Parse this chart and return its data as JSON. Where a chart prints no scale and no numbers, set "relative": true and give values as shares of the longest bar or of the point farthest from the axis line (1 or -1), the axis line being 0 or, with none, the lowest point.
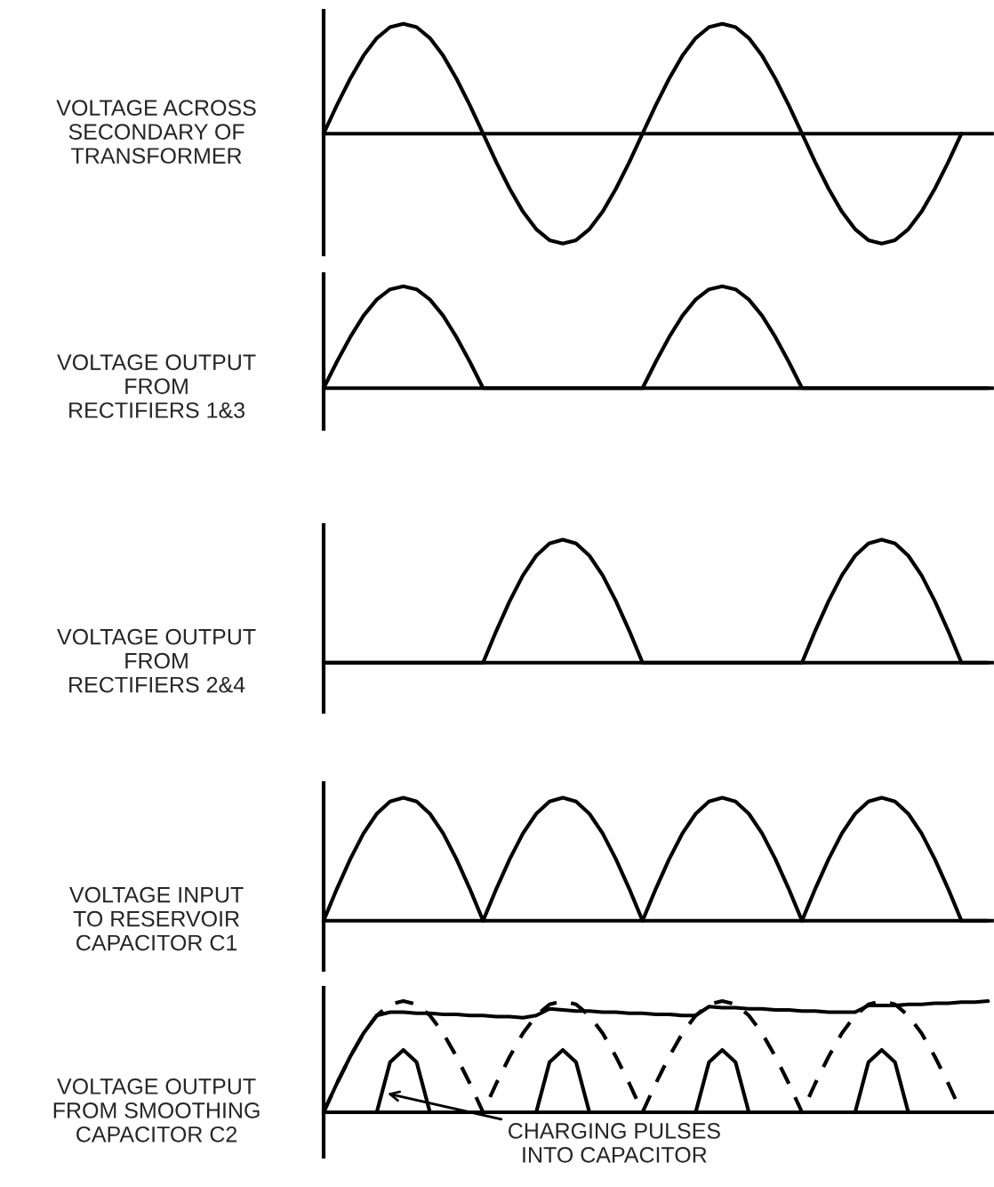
{
  "chart_data": [
    {
      "type": "line",
      "relative": true,
      "ylabel": "VOLTAGE ACROSS\nSECONDARY OF\nTRANSFORMER",
      "categories": [
        null,
        null,
        null,
        null,
        null,
        null,
        null,
        null,
        null,
        null,
        null,
        null,
        null,
        null,
        null,
        null,
        null,
        null,
        null,
        null,
        null,
        null,
        null,
        null,
        null,
        null,
        null,
        null,
        null,
        null,
        null,
        null,
        null,
        null,
        null,
        null,
        null,
        null,
        null,
        null,
        null,
        null,
        null,
        null,
        null,
        null,
        null,
        null,
        null,
        null,
        null
      ],
      "series": [
        {
          "color": "#000000",
          "values": [
            0,
            0.26,
            0.5,
            0.71,
            0.87,
            0.97,
            1,
            0.97,
            0.87,
            0.71,
            0.5,
            0.26,
            0,
            -0.26,
            -0.5,
            -0.71,
            -0.87,
            -0.97,
            -1,
            -0.97,
            -0.87,
            -0.71,
            -0.5,
            -0.26,
            0,
            0.26,
            0.5,
            0.71,
            0.87,
            0.97,
            1,
            0.97,
            0.87,
            0.71,
            0.5,
            0.26,
            0,
            -0.26,
            -0.5,
            -0.71,
            -0.87,
            -0.97,
            -1,
            -0.97,
            -0.87,
            -0.71,
            -0.5,
            -0.26,
            0,
            null,
            null
          ]
        }
      ]
    },
    {
      "type": "line",
      "relative": true,
      "ylabel": "VOLTAGE OUTPUT\nFROM\nRECTIFIERS 1&3",
      "categories": [
        null,
        null,
        null,
        null,
        null,
        null,
        null,
        null,
        null,
        null,
        null,
        null,
        null,
        null,
        null,
        null,
        null,
        null,
        null,
        null,
        null,
        null,
        null,
        null,
        null,
        null,
        null,
        null,
        null,
        null,
        null,
        null,
        null,
        null,
        null,
        null,
        null,
        null,
        null,
        null,
        null,
        null,
        null,
        null,
        null,
        null,
        null,
        null,
        null,
        null,
        null
      ],
      "series": [
        {
          "color": "#000000",
          "values": [
            0,
            0.26,
            0.5,
            0.71,
            0.87,
            0.97,
            1,
            0.97,
            0.87,
            0.71,
            0.5,
            0.26,
            0,
            0,
            0,
            0,
            0,
            0,
            0,
            0,
            0,
            0,
            0,
            0,
            0,
            0.26,
            0.5,
            0.71,
            0.87,
            0.97,
            1,
            0.97,
            0.87,
            0.71,
            0.5,
            0.26,
            0,
            0,
            0,
            0,
            0,
            0,
            0,
            0,
            0,
            0,
            0,
            0,
            0,
            0,
            0
          ]
        }
      ]
    },
    {
      "type": "line",
      "relative": true,
      "ylabel": "VOLTAGE OUTPUT\nFROM\nRECTIFIERS 2&4",
      "categories": [
        null,
        null,
        null,
        null,
        null,
        null,
        null,
        null,
        null,
        null,
        null,
        null,
        null,
        null,
        null,
        null,
        null,
        null,
        null,
        null,
        null,
        null,
        null,
        null,
        null,
        null,
        null,
        null,
        null,
        null,
        null,
        null,
        null,
        null,
        null,
        null,
        null,
        null,
        null,
        null,
        null,
        null,
        null,
        null,
        null,
        null,
        null,
        null,
        null,
        null,
        null
      ],
      "series": [
        {
          "color": "#000000",
          "values": [
            0,
            0,
            0,
            0,
            0,
            0,
            0,
            0,
            0,
            0,
            0,
            0,
            0,
            0.26,
            0.5,
            0.71,
            0.87,
            0.97,
            1,
            0.97,
            0.87,
            0.71,
            0.5,
            0.26,
            0,
            0,
            0,
            0,
            0,
            0,
            0,
            0,
            0,
            0,
            0,
            0,
            0,
            0.26,
            0.5,
            0.71,
            0.87,
            0.97,
            1,
            0.97,
            0.87,
            0.71,
            0.5,
            0.26,
            0,
            0,
            0
          ]
        }
      ]
    },
    {
      "type": "line",
      "relative": true,
      "ylabel": "VOLTAGE INPUT\nTO RESERVOIR\nCAPACITOR C1",
      "categories": [
        null,
        null,
        null,
        null,
        null,
        null,
        null,
        null,
        null,
        null,
        null,
        null,
        null,
        null,
        null,
        null,
        null,
        null,
        null,
        null,
        null,
        null,
        null,
        null,
        null,
        null,
        null,
        null,
        null,
        null,
        null,
        null,
        null,
        null,
        null,
        null,
        null,
        null,
        null,
        null,
        null,
        null,
        null,
        null,
        null,
        null,
        null,
        null,
        null,
        null,
        null
      ],
      "series": [
        {
          "color": "#000000",
          "values": [
            0,
            0.26,
            0.5,
            0.71,
            0.87,
            0.97,
            1,
            0.97,
            0.87,
            0.71,
            0.5,
            0.26,
            0,
            0.26,
            0.5,
            0.71,
            0.87,
            0.97,
            1,
            0.97,
            0.87,
            0.71,
            0.5,
            0.26,
            0,
            0.26,
            0.5,
            0.71,
            0.87,
            0.97,
            1,
            0.97,
            0.87,
            0.71,
            0.5,
            0.26,
            0,
            0.26,
            0.5,
            0.71,
            0.87,
            0.97,
            1,
            0.97,
            0.87,
            0.71,
            0.5,
            0.26,
            0,
            0,
            0
          ]
        }
      ]
    },
    {
      "type": "line",
      "relative": true,
      "ylabel": "VOLTAGE OUTPUT\nFROM SMOOTHING\nCAPACITOR C2",
      "annotations": [
        "CHARGING PULSES\nINTO CAPACITOR"
      ],
      "categories": [
        null,
        null,
        null,
        null,
        null,
        null,
        null,
        null,
        null,
        null,
        null,
        null,
        null,
        null,
        null,
        null,
        null,
        null,
        null,
        null,
        null,
        null,
        null,
        null,
        null,
        null,
        null,
        null,
        null,
        null,
        null,
        null,
        null,
        null,
        null,
        null,
        null,
        null,
        null,
        null,
        null,
        null,
        null,
        null,
        null,
        null,
        null,
        null,
        null,
        null,
        null
      ],
      "series": [
        {
          "color": "#000000",
          "line_style": "dashed",
          "values": [
            0,
            0.26,
            0.5,
            0.71,
            0.87,
            0.97,
            1,
            0.97,
            0.87,
            0.71,
            0.5,
            0.26,
            0,
            0.26,
            0.5,
            0.71,
            0.87,
            0.97,
            1,
            0.97,
            0.87,
            0.71,
            0.5,
            0.26,
            0,
            0.26,
            0.5,
            0.71,
            0.87,
            0.97,
            1,
            0.97,
            0.87,
            0.71,
            0.5,
            0.26,
            0,
            0.26,
            0.5,
            0.71,
            0.87,
            0.97,
            1,
            0.97,
            0.87,
            0.71,
            0.5,
            0.26,
            0,
            null,
            null
          ]
        },
        {
          "color": "#000000",
          "line_style": "solid",
          "values": [
            0,
            0.26,
            0.5,
            0.71,
            0.87,
            0.9,
            0.9,
            0.89,
            0.89,
            0.88,
            0.88,
            0.87,
            0.87,
            0.86,
            0.86,
            0.85,
            0.87,
            0.93,
            0.92,
            0.91,
            0.91,
            0.9,
            0.9,
            0.89,
            0.89,
            0.88,
            0.88,
            0.87,
            0.87,
            0.95,
            0.94,
            0.94,
            0.93,
            0.93,
            0.92,
            0.92,
            0.91,
            0.91,
            0.9,
            0.9,
            0.9,
            0.96,
            0.96,
            0.96,
            0.97,
            0.97,
            0.98,
            0.98,
            0.99,
            0.99,
            1
          ]
        },
        {
          "color": "#000000",
          "line_style": "solid",
          "values": [
            null,
            null,
            null,
            null,
            0,
            0.45,
            0.56,
            0.45,
            0,
            null,
            null,
            null,
            null,
            null,
            null,
            null,
            0,
            0.45,
            0.56,
            0.45,
            0,
            null,
            null,
            null,
            null,
            null,
            null,
            null,
            0,
            0.45,
            0.56,
            0.45,
            0,
            null,
            null,
            null,
            null,
            null,
            null,
            null,
            0,
            0.45,
            0.56,
            0.45,
            0,
            null,
            null,
            null,
            null,
            null,
            null
          ]
        }
      ]
    }
  ]
}
